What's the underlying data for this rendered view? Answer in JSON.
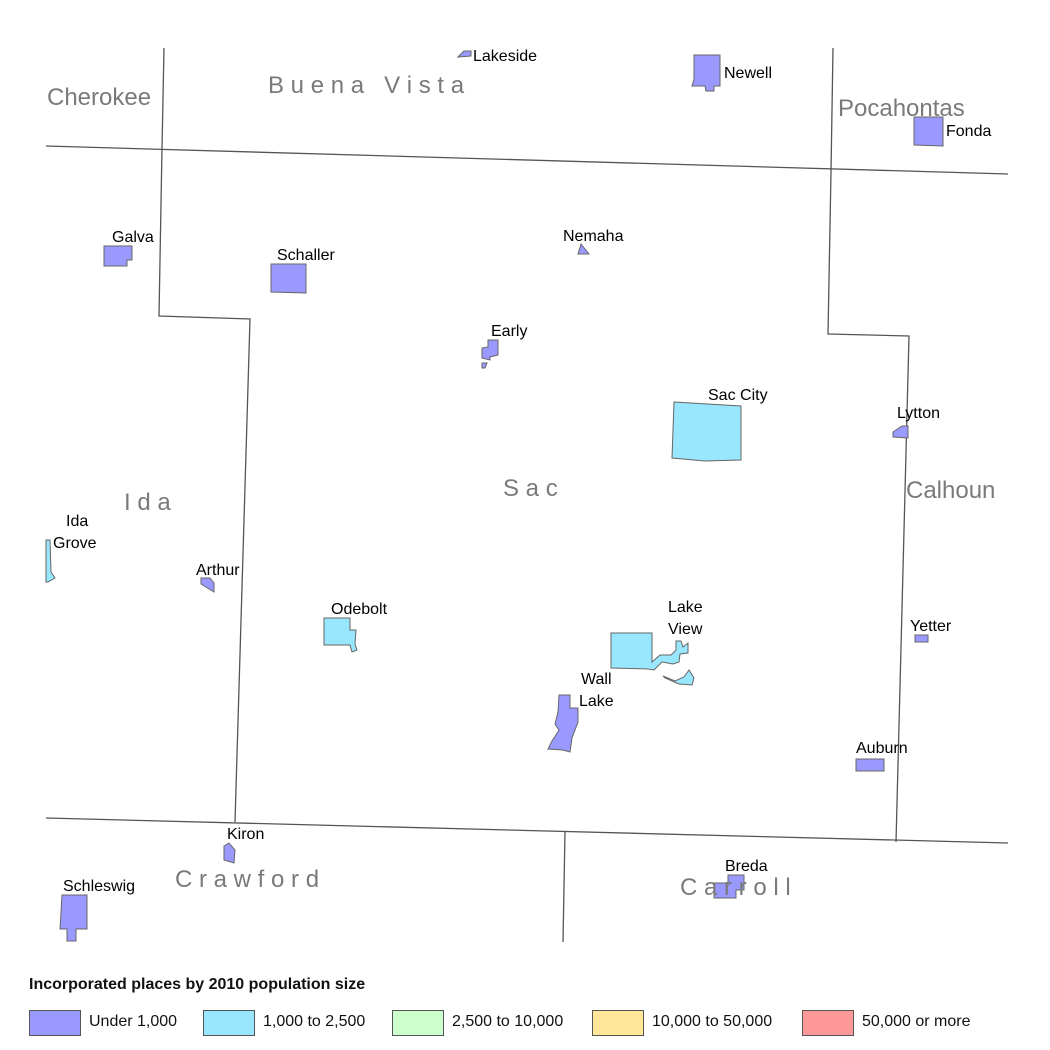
{
  "counties": [
    {
      "id": "buena-vista",
      "name": "B u e n a   V i s t a"
    },
    {
      "id": "cherokee",
      "name": "Cherokee"
    },
    {
      "id": "pocahontas",
      "name": "Pocahontas"
    },
    {
      "id": "ida",
      "name": "I d a"
    },
    {
      "id": "sac",
      "name": "S a c"
    },
    {
      "id": "calhoun",
      "name": "Calhoun"
    },
    {
      "id": "crawford",
      "name": "C r a w f o r d"
    },
    {
      "id": "carroll",
      "name": "C a r r o l l"
    }
  ],
  "places": [
    {
      "id": "lakeside",
      "name": "Lakeside",
      "size_class": "Under 1,000"
    },
    {
      "id": "newell",
      "name": "Newell",
      "size_class": "Under 1,000"
    },
    {
      "id": "fonda",
      "name": "Fonda",
      "size_class": "Under 1,000"
    },
    {
      "id": "galva",
      "name": "Galva",
      "size_class": "Under 1,000"
    },
    {
      "id": "schaller",
      "name": "Schaller",
      "size_class": "Under 1,000"
    },
    {
      "id": "nemaha",
      "name": "Nemaha",
      "size_class": "Under 1,000"
    },
    {
      "id": "early",
      "name": "Early",
      "size_class": "Under 1,000"
    },
    {
      "id": "sac-city",
      "name": "Sac City",
      "size_class": "1,000 to 2,500"
    },
    {
      "id": "lytton",
      "name": "Lytton",
      "size_class": "Under 1,000"
    },
    {
      "id": "ida-grove",
      "name_lines": [
        "Ida",
        "Grove"
      ],
      "size_class": "1,000 to 2,500"
    },
    {
      "id": "arthur",
      "name": "Arthur",
      "size_class": "Under 1,000"
    },
    {
      "id": "odebolt",
      "name": "Odebolt",
      "size_class": "1,000 to 2,500"
    },
    {
      "id": "lake-view",
      "name_lines": [
        "Lake",
        "View"
      ],
      "size_class": "1,000 to 2,500"
    },
    {
      "id": "yetter",
      "name": "Yetter",
      "size_class": "Under 1,000"
    },
    {
      "id": "wall-lake",
      "name_lines": [
        "Wall",
        "Lake"
      ],
      "size_class": "Under 1,000"
    },
    {
      "id": "auburn",
      "name": "Auburn",
      "size_class": "Under 1,000"
    },
    {
      "id": "kiron",
      "name": "Kiron",
      "size_class": "Under 1,000"
    },
    {
      "id": "schleswig",
      "name": "Schleswig",
      "size_class": "Under 1,000"
    },
    {
      "id": "breda",
      "name": "Breda",
      "size_class": "Under 1,000"
    }
  ],
  "legend": {
    "title": "Incorporated places by 2010 population size",
    "items": [
      {
        "label": "Under 1,000",
        "color": "#9999ff"
      },
      {
        "label": "1,000 to 2,500",
        "color": "#99e6ff"
      },
      {
        "label": "2,500 to 10,000",
        "color": "#ccffcc"
      },
      {
        "label": "10,000 to 50,000",
        "color": "#ffe699"
      },
      {
        "label": "50,000 or more",
        "color": "#ff9999"
      }
    ]
  },
  "colors": {
    "boundary": "#555555",
    "place_outline": "#666666",
    "county_label": "#7a7a7a"
  }
}
